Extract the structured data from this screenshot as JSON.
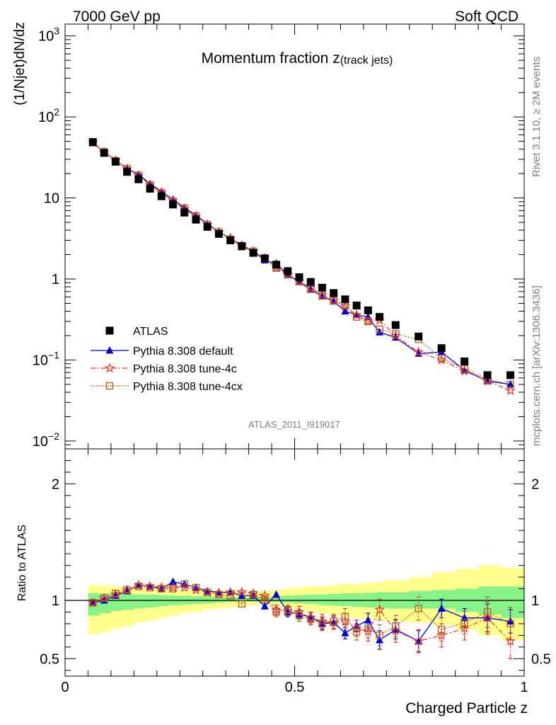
{
  "header": {
    "energy": "7000 GeV pp",
    "category": "Soft QCD",
    "plot_title": "Momentum fraction z",
    "plot_title_sub": "(track jets)",
    "side_text_top": "Rivet 3.1.10, ≥ 2M events",
    "side_text_bottom": "mcplots.cern.ch [arXiv:1306.3436]",
    "analysis_id": "ATLAS_2011_I919017"
  },
  "chart_data": [
    {
      "type": "scatter",
      "ylabel": "(1/Njet)dN/dz",
      "yscale": "log",
      "ylim": [
        0.008,
        1400
      ],
      "xlim": [
        0,
        1.0
      ],
      "y_tick_labels": [
        {
          "v": 0.01,
          "base": "10",
          "exp": "−2"
        },
        {
          "v": 0.1,
          "base": "10",
          "exp": "−1"
        },
        {
          "v": 1,
          "base": "1",
          "exp": ""
        },
        {
          "v": 10,
          "base": "10",
          "exp": ""
        },
        {
          "v": 100,
          "base": "10",
          "exp": "2"
        },
        {
          "v": 1000,
          "base": "10",
          "exp": "3"
        }
      ],
      "legend_position": "bottom-left",
      "x": [
        0.0605,
        0.085,
        0.11,
        0.135,
        0.16,
        0.185,
        0.21,
        0.235,
        0.26,
        0.285,
        0.31,
        0.335,
        0.36,
        0.385,
        0.41,
        0.435,
        0.46,
        0.485,
        0.51,
        0.535,
        0.56,
        0.585,
        0.61,
        0.635,
        0.66,
        0.685,
        0.72,
        0.77,
        0.82,
        0.87,
        0.92,
        0.97
      ],
      "series": [
        {
          "name": "ATLAS",
          "color": "#000000",
          "marker": "square-filled",
          "values": [
            49,
            36,
            28,
            21,
            17,
            13,
            10.5,
            8.3,
            6.6,
            5.4,
            4.4,
            3.6,
            3.0,
            2.55,
            2.1,
            1.8,
            1.5,
            1.25,
            1.05,
            0.92,
            0.78,
            0.67,
            0.56,
            0.47,
            0.41,
            0.34,
            0.27,
            0.195,
            0.14,
            0.096,
            0.065,
            0.065
          ]
        },
        {
          "name": "Pythia 8.308 default",
          "color": "#0000cc",
          "marker": "triangle-filled",
          "line": "solid",
          "values": [
            48,
            37,
            29,
            23,
            19.5,
            15,
            12,
            9.6,
            7.6,
            6.1,
            4.8,
            3.8,
            3.2,
            2.6,
            2.2,
            1.7,
            1.55,
            1.12,
            0.92,
            0.74,
            0.61,
            0.53,
            0.4,
            0.36,
            0.34,
            0.22,
            0.19,
            0.12,
            0.125,
            0.075,
            0.055,
            0.05
          ]
        },
        {
          "name": "Pythia 8.308 tune-4c",
          "color": "#e8352a",
          "marker": "star-open",
          "line": "dashdot",
          "values": [
            48,
            37,
            29,
            23,
            19,
            14.5,
            11.7,
            9.2,
            7.3,
            5.9,
            4.7,
            3.8,
            3.2,
            2.6,
            2.2,
            1.8,
            1.38,
            1.13,
            0.94,
            0.78,
            0.64,
            0.54,
            0.46,
            0.36,
            0.3,
            0.31,
            0.2,
            0.125,
            0.1,
            0.073,
            0.055,
            0.042
          ]
        },
        {
          "name": "Pythia 8.308 tune-4cx",
          "color": "#b35a1f",
          "marker": "square-open",
          "line": "dotted",
          "values": [
            48,
            37,
            29,
            23,
            19,
            14.5,
            11.6,
            9.1,
            7.5,
            6.0,
            4.7,
            3.8,
            3.1,
            2.5,
            2.2,
            1.8,
            1.36,
            1.15,
            0.93,
            0.76,
            0.62,
            0.54,
            0.48,
            0.34,
            0.3,
            0.24,
            0.21,
            0.18,
            0.105,
            0.078,
            0.058,
            0.05
          ]
        }
      ]
    },
    {
      "type": "line",
      "ylabel": "Ratio to ATLAS",
      "xlabel": "Charged Particle z",
      "ylim": [
        0.35,
        2.3
      ],
      "xlim": [
        0,
        1.0
      ],
      "y_ticks": [
        0.5,
        1,
        2
      ],
      "y_tick_labels": [
        "0.5",
        "1",
        "2"
      ],
      "x_ticks": [
        0,
        0.5,
        1
      ],
      "x_tick_labels": [
        "0",
        "0.5",
        "1"
      ],
      "reference_line": 1,
      "uncertainty_bands": {
        "x_edges": [
          0.05,
          0.075,
          0.1,
          0.125,
          0.15,
          0.175,
          0.2,
          0.225,
          0.25,
          0.275,
          0.3,
          0.325,
          0.35,
          0.375,
          0.4,
          0.425,
          0.45,
          0.475,
          0.5,
          0.525,
          0.55,
          0.575,
          0.6,
          0.625,
          0.65,
          0.675,
          0.7,
          0.75,
          0.8,
          0.85,
          0.9,
          0.95,
          1.0
        ],
        "stat_color": "#87f287",
        "syst_color": "#ffff8c",
        "stat_lo": [
          0.87,
          0.89,
          0.91,
          0.92,
          0.93,
          0.94,
          0.95,
          0.96,
          0.965,
          0.97,
          0.975,
          0.98,
          0.985,
          0.99,
          0.99,
          0.995,
          0.985,
          0.98,
          0.975,
          0.97,
          0.96,
          0.955,
          0.95,
          0.945,
          0.94,
          0.935,
          0.93,
          0.93,
          0.93,
          0.9,
          0.88,
          0.85
        ],
        "stat_hi": [
          1.06,
          1.06,
          1.06,
          1.055,
          1.05,
          1.05,
          1.045,
          1.04,
          1.04,
          1.035,
          1.035,
          1.03,
          1.03,
          1.025,
          1.03,
          1.03,
          1.035,
          1.04,
          1.045,
          1.05,
          1.05,
          1.055,
          1.06,
          1.06,
          1.065,
          1.07,
          1.07,
          1.08,
          1.09,
          1.1,
          1.12,
          1.12
        ],
        "syst_lo": [
          0.71,
          0.73,
          0.76,
          0.78,
          0.81,
          0.83,
          0.85,
          0.87,
          0.89,
          0.9,
          0.92,
          0.93,
          0.94,
          0.95,
          0.96,
          0.97,
          0.95,
          0.93,
          0.92,
          0.9,
          0.89,
          0.87,
          0.86,
          0.85,
          0.84,
          0.83,
          0.82,
          0.81,
          0.79,
          0.75,
          0.7,
          0.66
        ],
        "syst_hi": [
          1.13,
          1.13,
          1.12,
          1.11,
          1.11,
          1.1,
          1.1,
          1.09,
          1.09,
          1.09,
          1.08,
          1.08,
          1.08,
          1.07,
          1.07,
          1.08,
          1.09,
          1.1,
          1.11,
          1.12,
          1.12,
          1.13,
          1.14,
          1.14,
          1.15,
          1.16,
          1.17,
          1.2,
          1.24,
          1.27,
          1.3,
          1.28
        ]
      },
      "x": [
        0.0605,
        0.085,
        0.11,
        0.135,
        0.16,
        0.185,
        0.21,
        0.235,
        0.26,
        0.285,
        0.31,
        0.335,
        0.36,
        0.385,
        0.41,
        0.435,
        0.46,
        0.485,
        0.51,
        0.535,
        0.56,
        0.585,
        0.61,
        0.635,
        0.66,
        0.685,
        0.72,
        0.77,
        0.82,
        0.87,
        0.92,
        0.97
      ],
      "series": [
        {
          "name": "Pythia 8.308 default",
          "color": "#0000cc",
          "marker": "triangle-filled",
          "line": "solid",
          "values": [
            0.98,
            1.0,
            1.04,
            1.08,
            1.13,
            1.12,
            1.1,
            1.16,
            1.14,
            1.11,
            1.08,
            1.07,
            1.07,
            1.04,
            1.04,
            0.95,
            1.05,
            0.9,
            0.88,
            0.86,
            0.8,
            0.81,
            0.72,
            0.78,
            0.83,
            0.66,
            0.75,
            0.65,
            0.93,
            0.85,
            0.85,
            0.82
          ],
          "err": [
            0.01,
            0.01,
            0.01,
            0.01,
            0.01,
            0.01,
            0.01,
            0.01,
            0.01,
            0.01,
            0.01,
            0.01,
            0.01,
            0.01,
            0.02,
            0.03,
            0.03,
            0.04,
            0.04,
            0.04,
            0.05,
            0.05,
            0.05,
            0.05,
            0.06,
            0.08,
            0.08,
            0.09,
            0.08,
            0.08,
            0.12,
            0.1
          ]
        },
        {
          "name": "Pythia 8.308 tune-4c",
          "color": "#e8352a",
          "marker": "star-open",
          "line": "dashdot",
          "values": [
            0.98,
            1.02,
            1.05,
            1.09,
            1.13,
            1.12,
            1.11,
            1.11,
            1.11,
            1.09,
            1.07,
            1.06,
            1.07,
            1.07,
            1.06,
            1.04,
            0.92,
            0.91,
            0.9,
            0.85,
            0.82,
            0.81,
            0.82,
            0.76,
            0.73,
            0.92,
            0.74,
            0.65,
            0.7,
            0.76,
            0.85,
            0.65
          ],
          "err": [
            0.01,
            0.01,
            0.01,
            0.01,
            0.01,
            0.01,
            0.01,
            0.01,
            0.01,
            0.01,
            0.01,
            0.01,
            0.02,
            0.02,
            0.02,
            0.03,
            0.04,
            0.04,
            0.05,
            0.05,
            0.06,
            0.06,
            0.07,
            0.07,
            0.08,
            0.09,
            0.1,
            0.1,
            0.1,
            0.1,
            0.14,
            0.15
          ]
        },
        {
          "name": "Pythia 8.308 tune-4cx",
          "color": "#b35a1f",
          "marker": "square-open",
          "line": "dotted",
          "values": [
            0.98,
            1.02,
            1.06,
            1.09,
            1.12,
            1.11,
            1.1,
            1.1,
            1.14,
            1.11,
            1.07,
            1.05,
            1.04,
            0.97,
            1.05,
            1.01,
            0.9,
            0.92,
            0.87,
            0.84,
            0.8,
            0.82,
            0.86,
            0.73,
            0.76,
            0.7,
            0.78,
            0.93,
            0.75,
            0.81,
            0.9,
            0.8
          ],
          "err": [
            0.01,
            0.01,
            0.01,
            0.01,
            0.01,
            0.01,
            0.01,
            0.01,
            0.01,
            0.01,
            0.01,
            0.02,
            0.02,
            0.02,
            0.02,
            0.03,
            0.04,
            0.04,
            0.05,
            0.05,
            0.06,
            0.06,
            0.07,
            0.07,
            0.08,
            0.09,
            0.09,
            0.1,
            0.1,
            0.1,
            0.13,
            0.14
          ]
        }
      ]
    }
  ]
}
